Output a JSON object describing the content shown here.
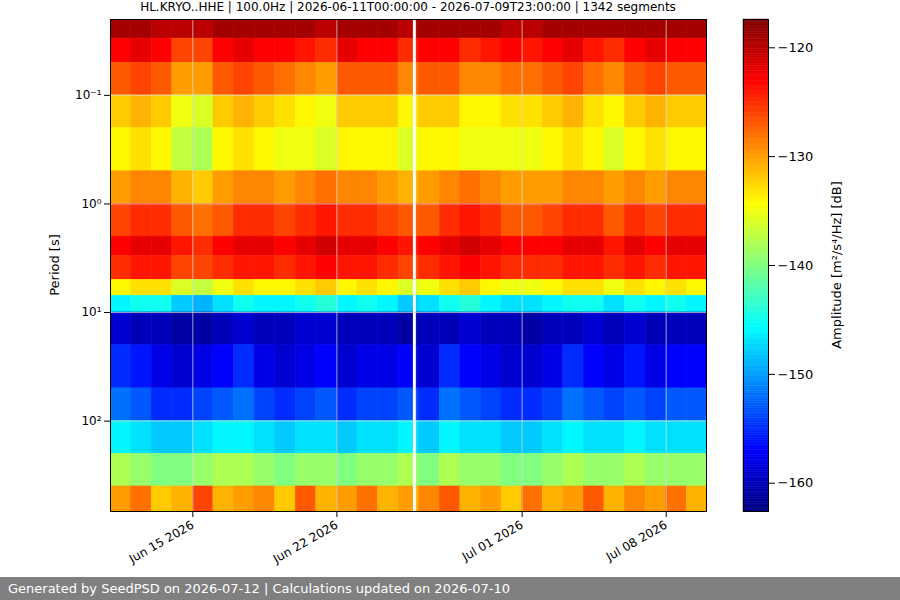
{
  "chart_data": {
    "type": "heatmap",
    "title": "HL.KRYO..HHE | 100.0Hz | 2026-06-11T00:00:00 - 2026-07-09T23:00:00 | 1342 segments",
    "caption": "Generated by SeedPSD on 2026-07-12 | Calculations updated on 2026-07-10",
    "ylabel": "Period [s]",
    "log": "y",
    "grid": true,
    "xlim": [
      "2026-06-11T00:00:00",
      "2026-07-09T23:00:00"
    ],
    "xticks": [
      {
        "value": "2026-06-15",
        "label": "Jun 15 2026"
      },
      {
        "value": "2026-06-22",
        "label": "Jun 22 2026"
      },
      {
        "value": "2026-07-01",
        "label": "Jul 01 2026"
      },
      {
        "value": "2026-07-08",
        "label": "Jul 08 2026"
      }
    ],
    "ylim": [
      680,
      0.02
    ],
    "yticks": [
      {
        "value": 0.1,
        "label": "10⁻¹"
      },
      {
        "value": 1,
        "label": "10⁰"
      },
      {
        "value": 10,
        "label": "10¹"
      },
      {
        "value": 100,
        "label": "10²"
      }
    ],
    "x": [
      "2026-06-11T00:00",
      "2026-06-12T00:00",
      "2026-06-13T00:00",
      "2026-06-14T00:00",
      "2026-06-15T00:00",
      "2026-06-16T00:00",
      "2026-06-17T00:00",
      "2026-06-18T00:00",
      "2026-06-19T00:00",
      "2026-06-20T00:00",
      "2026-06-21T00:00",
      "2026-06-22T00:00",
      "2026-06-23T00:00",
      "2026-06-24T00:00",
      "2026-06-25T00:00",
      "2026-06-25T17:00",
      "2026-06-25T21:00",
      "2026-06-26T00:00",
      "2026-06-27T00:00",
      "2026-06-28T00:00",
      "2026-06-29T00:00",
      "2026-06-30T00:00",
      "2026-07-01T00:00",
      "2026-07-02T00:00",
      "2026-07-03T00:00",
      "2026-07-04T00:00",
      "2026-07-05T00:00",
      "2026-07-06T00:00",
      "2026-07-07T00:00",
      "2026-07-08T00:00",
      "2026-07-09T00:00"
    ],
    "y_edges": [
      0.02,
      0.03,
      0.05,
      0.1,
      0.2,
      0.5,
      1,
      2,
      3,
      5,
      7,
      10,
      20,
      50,
      100,
      200,
      400,
      680
    ],
    "z": [
      [
        -119,
        -119,
        -120,
        -120,
        -120,
        -119,
        -119,
        -119,
        -119,
        -119,
        -120,
        -119,
        -119,
        -119,
        -120,
        null,
        -119,
        -119,
        -119,
        -119,
        -119,
        -120,
        -120,
        -119,
        -119,
        -119,
        -119,
        -119,
        -119,
        -119,
        -119
      ],
      [
        -123,
        -122,
        -123,
        -126,
        -126,
        -123,
        -122,
        -123,
        -123,
        -124,
        -125,
        -122,
        -123,
        -123,
        -125,
        null,
        -124,
        -123,
        -123,
        -125,
        -124,
        -123,
        -124,
        -123,
        -122,
        -124,
        -125,
        -123,
        -122,
        -123,
        -123
      ],
      [
        -127,
        -126,
        -127,
        -130,
        -130,
        -127,
        -126,
        -127,
        -128,
        -129,
        -130,
        -127,
        -127,
        -127,
        -129,
        null,
        -128,
        -127,
        -127,
        -129,
        -129,
        -128,
        -128,
        -127,
        -126,
        -128,
        -129,
        -127,
        -126,
        -127,
        -127
      ],
      [
        -132,
        -131,
        -132,
        -135,
        -136,
        -132,
        -131,
        -132,
        -133,
        -134,
        -135,
        -132,
        -132,
        -132,
        -134,
        null,
        -133,
        -132,
        -132,
        -134,
        -134,
        -133,
        -133,
        -132,
        -131,
        -133,
        -134,
        -132,
        -131,
        -132,
        -132
      ],
      [
        -134,
        -133,
        -134,
        -137,
        -138,
        -134,
        -133,
        -134,
        -135,
        -135,
        -136,
        -134,
        -134,
        -134,
        -136,
        null,
        -135,
        -134,
        -134,
        -135,
        -135,
        -135,
        -135,
        -134,
        -133,
        -134,
        -136,
        -134,
        -133,
        -134,
        -134
      ],
      [
        -130,
        -129,
        -129,
        -131,
        -132,
        -130,
        -129,
        -129,
        -130,
        -129,
        -128,
        -129,
        -129,
        -130,
        -131,
        null,
        -131,
        -130,
        -129,
        -128,
        -129,
        -130,
        -130,
        -130,
        -129,
        -129,
        -130,
        -129,
        -130,
        -129,
        -129
      ],
      [
        -126,
        -125,
        -125,
        -127,
        -128,
        -127,
        -125,
        -125,
        -126,
        -125,
        -124,
        -125,
        -125,
        -126,
        -127,
        null,
        -127,
        -127,
        -125,
        -124,
        -125,
        -127,
        -127,
        -126,
        -125,
        -125,
        -127,
        -125,
        -126,
        -125,
        -125
      ],
      [
        -123,
        -122,
        -122,
        -124,
        -125,
        -123,
        -122,
        -122,
        -123,
        -122,
        -121,
        -122,
        -122,
        -123,
        -124,
        null,
        -124,
        -123,
        -122,
        -121,
        -122,
        -123,
        -123,
        -123,
        -122,
        -122,
        -124,
        -122,
        -123,
        -122,
        -122
      ],
      [
        -125,
        -124,
        -124,
        -126,
        -126,
        -125,
        -124,
        -124,
        -125,
        -124,
        -123,
        -124,
        -124,
        -125,
        -126,
        null,
        -126,
        -125,
        -124,
        -123,
        -124,
        -125,
        -125,
        -125,
        -124,
        -124,
        -125,
        -124,
        -125,
        -124,
        -124
      ],
      [
        -134,
        -133,
        -133,
        -136,
        -137,
        -135,
        -133,
        -134,
        -134,
        -133,
        -132,
        -134,
        -133,
        -134,
        -136,
        null,
        -136,
        -135,
        -133,
        -132,
        -134,
        -135,
        -135,
        -134,
        -133,
        -133,
        -135,
        -133,
        -134,
        -133,
        -134
      ],
      [
        -146,
        -145,
        -145,
        -148,
        -149,
        -147,
        -145,
        -146,
        -146,
        -145,
        -144,
        -146,
        -145,
        -146,
        -148,
        null,
        -148,
        -147,
        -145,
        -144,
        -146,
        -147,
        -147,
        -146,
        -145,
        -145,
        -147,
        -145,
        -146,
        -145,
        -146
      ],
      [
        -159,
        -160,
        -160,
        -161,
        -161,
        -160,
        -159,
        -160,
        -160,
        -159,
        -159,
        -160,
        -160,
        -160,
        -161,
        null,
        -161,
        -160,
        -160,
        -159,
        -160,
        -160,
        -161,
        -160,
        -160,
        -159,
        -160,
        -159,
        -160,
        -160,
        -160
      ],
      [
        -155,
        -156,
        -158,
        -159,
        -158,
        -157,
        -155,
        -158,
        -159,
        -158,
        -157,
        -159,
        -158,
        -158,
        -157,
        null,
        -158,
        -159,
        -155,
        -157,
        -158,
        -159,
        -159,
        -158,
        -155,
        -157,
        -158,
        -156,
        -158,
        -157,
        -157
      ],
      [
        -152,
        -153,
        -155,
        -155,
        -154,
        -153,
        -152,
        -154,
        -155,
        -154,
        -153,
        -155,
        -154,
        -154,
        -153,
        null,
        -154,
        -155,
        -152,
        -153,
        -154,
        -155,
        -155,
        -154,
        -152,
        -153,
        -154,
        -153,
        -154,
        -153,
        -153
      ],
      [
        -146,
        -147,
        -148,
        -148,
        -147,
        -146,
        -146,
        -147,
        -148,
        -147,
        -147,
        -148,
        -147,
        -147,
        -146,
        null,
        -147,
        -148,
        -146,
        -147,
        -147,
        -148,
        -148,
        -147,
        -146,
        -147,
        -147,
        -146,
        -147,
        -147,
        -147
      ],
      [
        -138,
        -139,
        -140,
        -140,
        -139,
        -138,
        -138,
        -139,
        -140,
        -139,
        -139,
        -140,
        -139,
        -139,
        -138,
        null,
        -139,
        -140,
        -138,
        -139,
        -139,
        -140,
        -140,
        -139,
        -138,
        -139,
        -139,
        -138,
        -139,
        -139,
        -139
      ],
      [
        -130,
        -128,
        -132,
        -131,
        -126,
        -131,
        -130,
        -129,
        -132,
        -127,
        -131,
        -130,
        -128,
        -131,
        -130,
        null,
        -131,
        -129,
        -127,
        -131,
        -130,
        -132,
        -128,
        -131,
        -130,
        -127,
        -131,
        -129,
        -130,
        -128,
        -131
      ]
    ],
    "colorbar": {
      "label": "Amplitude [m²/s⁴/Hz] [dB]",
      "range": [
        -162.6,
        -117.4
      ],
      "ticks": [
        {
          "value": -160,
          "label": "−160"
        },
        {
          "value": -150,
          "label": "−150"
        },
        {
          "value": -140,
          "label": "−140"
        },
        {
          "value": -130,
          "label": "−130"
        },
        {
          "value": -120,
          "label": "−120"
        }
      ]
    }
  }
}
